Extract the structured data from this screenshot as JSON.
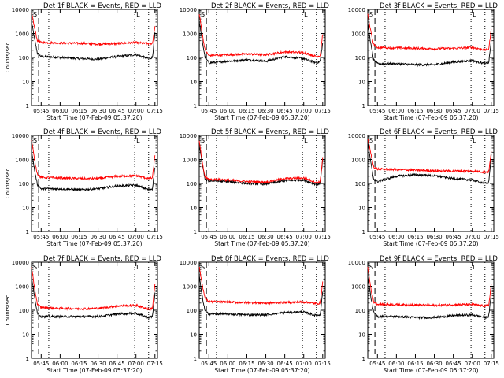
{
  "chart_data": [
    {
      "type": "line",
      "title": "Det 1f BLACK = Events, RED = LLD",
      "xlabel": "Start Time (07-Feb-09 05:37:20)",
      "ylabel": "Counts/sec",
      "yscale": "log",
      "ylim": [
        1,
        10000
      ],
      "xticks": [
        "05:45",
        "06:00",
        "06:15",
        "06:30",
        "06:45",
        "07:00",
        "07:15"
      ],
      "yticks": [
        "1",
        "10",
        "100",
        "1000",
        "10000"
      ],
      "markers": {
        "top_left": "S",
        "top_right": "L"
      },
      "series": [
        {
          "color": "#000000",
          "x": [
            "05:37",
            "05:38",
            "05:40",
            "05:42",
            "05:45",
            "06:00",
            "06:15",
            "06:30",
            "06:45",
            "07:00",
            "07:10",
            "07:13",
            "07:15"
          ],
          "values": [
            4000,
            2000,
            500,
            150,
            110,
            100,
            90,
            85,
            110,
            130,
            90,
            100,
            1000
          ]
        },
        {
          "color": "#ff0000",
          "x": [
            "05:37",
            "05:38",
            "05:40",
            "05:42",
            "05:45",
            "06:00",
            "06:15",
            "06:30",
            "06:45",
            "07:00",
            "07:10",
            "07:13",
            "07:15"
          ],
          "values": [
            8000,
            5000,
            1500,
            500,
            420,
            400,
            390,
            360,
            380,
            420,
            370,
            380,
            2000
          ]
        }
      ]
    },
    {
      "type": "line",
      "title": "Det 2f BLACK = Events, RED = LLD",
      "xlabel": "Start Time (07-Feb-09 05:37:20)",
      "ylabel": "",
      "yscale": "log",
      "ylim": [
        1,
        10000
      ],
      "xticks": [
        "05:45",
        "06:00",
        "06:15",
        "06:30",
        "06:45",
        "07:00",
        "07:15"
      ],
      "yticks": [
        "1",
        "10",
        "100",
        "1000",
        "10000"
      ],
      "markers": {
        "top_left": "S",
        "top_right": "L"
      },
      "series": [
        {
          "color": "#000000",
          "x": [
            "05:37",
            "05:38",
            "05:40",
            "05:42",
            "05:45",
            "06:00",
            "06:15",
            "06:30",
            "06:45",
            "07:00",
            "07:10",
            "07:13",
            "07:15"
          ],
          "values": [
            4000,
            2000,
            400,
            100,
            60,
            70,
            80,
            70,
            110,
            90,
            60,
            70,
            400
          ]
        },
        {
          "color": "#ff0000",
          "x": [
            "05:37",
            "05:38",
            "05:40",
            "05:42",
            "05:45",
            "06:00",
            "06:15",
            "06:30",
            "06:45",
            "07:00",
            "07:10",
            "07:13",
            "07:15"
          ],
          "values": [
            8000,
            4000,
            800,
            200,
            120,
            130,
            140,
            130,
            170,
            160,
            110,
            120,
            1000
          ]
        }
      ]
    },
    {
      "type": "line",
      "title": "Det 3f BLACK = Events, RED = LLD",
      "xlabel": "Start Time (07-Feb-09 05:37:20)",
      "ylabel": "",
      "yscale": "log",
      "ylim": [
        1,
        10000
      ],
      "xticks": [
        "05:45",
        "06:00",
        "06:15",
        "06:30",
        "06:45",
        "07:00",
        "07:15"
      ],
      "yticks": [
        "1",
        "10",
        "100",
        "1000",
        "10000"
      ],
      "markers": {
        "top_left": "S",
        "top_right": "L"
      },
      "series": [
        {
          "color": "#000000",
          "x": [
            "05:37",
            "05:38",
            "05:40",
            "05:42",
            "05:45",
            "06:00",
            "06:15",
            "06:30",
            "06:45",
            "07:00",
            "07:10",
            "07:13",
            "07:15"
          ],
          "values": [
            3000,
            1500,
            300,
            80,
            55,
            55,
            50,
            50,
            65,
            75,
            55,
            60,
            500
          ]
        },
        {
          "color": "#ff0000",
          "x": [
            "05:37",
            "05:38",
            "05:40",
            "05:42",
            "05:45",
            "06:00",
            "06:15",
            "06:30",
            "06:45",
            "07:00",
            "07:10",
            "07:13",
            "07:15"
          ],
          "values": [
            8000,
            4000,
            1000,
            350,
            260,
            250,
            240,
            230,
            240,
            260,
            210,
            220,
            1500
          ]
        }
      ]
    },
    {
      "type": "line",
      "title": "Det 4f BLACK = Events, RED = LLD",
      "xlabel": "Start Time (07-Feb-09 05:37:20)",
      "ylabel": "Counts/sec",
      "yscale": "log",
      "ylim": [
        1,
        10000
      ],
      "xticks": [
        "05:45",
        "06:00",
        "06:15",
        "06:30",
        "06:45",
        "07:00",
        "07:15"
      ],
      "yticks": [
        "1",
        "10",
        "100",
        "1000",
        "10000"
      ],
      "markers": {
        "top_left": "S",
        "top_right": "L"
      },
      "series": [
        {
          "color": "#000000",
          "x": [
            "05:37",
            "05:38",
            "05:40",
            "05:42",
            "05:45",
            "06:00",
            "06:15",
            "06:30",
            "06:45",
            "07:00",
            "07:10",
            "07:13",
            "07:15"
          ],
          "values": [
            4000,
            1500,
            300,
            90,
            60,
            60,
            55,
            60,
            80,
            85,
            55,
            60,
            500
          ]
        },
        {
          "color": "#ff0000",
          "x": [
            "05:37",
            "05:38",
            "05:40",
            "05:42",
            "05:45",
            "06:00",
            "06:15",
            "06:30",
            "06:45",
            "07:00",
            "07:10",
            "07:13",
            "07:15"
          ],
          "values": [
            8000,
            4000,
            800,
            250,
            180,
            170,
            160,
            160,
            200,
            210,
            160,
            170,
            1500
          ]
        }
      ]
    },
    {
      "type": "line",
      "title": "Det 5f BLACK = Events, RED = LLD",
      "xlabel": "Start Time (07-Feb-09 05:37:20)",
      "ylabel": "",
      "yscale": "log",
      "ylim": [
        1,
        10000
      ],
      "xticks": [
        "05:45",
        "06:00",
        "06:15",
        "06:30",
        "06:45",
        "07:00",
        "07:15"
      ],
      "yticks": [
        "1",
        "10",
        "100",
        "1000",
        "10000"
      ],
      "markers": {
        "top_left": "S",
        "top_right": "L"
      },
      "series": [
        {
          "color": "#000000",
          "x": [
            "05:37",
            "05:38",
            "05:40",
            "05:42",
            "05:45",
            "06:00",
            "06:15",
            "06:30",
            "06:45",
            "07:00",
            "07:10",
            "07:13",
            "07:15"
          ],
          "values": [
            5000,
            2500,
            500,
            150,
            130,
            120,
            100,
            95,
            130,
            140,
            90,
            100,
            1000
          ]
        },
        {
          "color": "#ff0000",
          "x": [
            "05:37",
            "05:38",
            "05:40",
            "05:42",
            "05:45",
            "06:00",
            "06:15",
            "06:30",
            "06:45",
            "07:00",
            "07:10",
            "07:13",
            "07:15"
          ],
          "values": [
            7000,
            3500,
            600,
            180,
            150,
            140,
            120,
            115,
            160,
            170,
            110,
            120,
            1200
          ]
        }
      ]
    },
    {
      "type": "line",
      "title": "Det 6f BLACK = Events, RED = LLD",
      "xlabel": "Start Time (07-Feb-09 05:37:20)",
      "ylabel": "",
      "yscale": "log",
      "ylim": [
        1,
        10000
      ],
      "xticks": [
        "05:45",
        "06:00",
        "06:15",
        "06:30",
        "06:45",
        "07:00",
        "07:15"
      ],
      "yticks": [
        "1",
        "10",
        "100",
        "1000",
        "10000"
      ],
      "markers": {
        "top_left": "S",
        "top_right": "L"
      },
      "series": [
        {
          "color": "#000000",
          "x": [
            "05:37",
            "05:38",
            "05:40",
            "05:42",
            "05:45",
            "06:00",
            "06:15",
            "06:30",
            "06:45",
            "07:00",
            "07:10",
            "07:13",
            "07:15"
          ],
          "values": [
            6000,
            3000,
            600,
            150,
            120,
            200,
            230,
            210,
            160,
            140,
            100,
            110,
            1500
          ]
        },
        {
          "color": "#ff0000",
          "x": [
            "05:37",
            "05:38",
            "05:40",
            "05:42",
            "05:45",
            "06:00",
            "06:15",
            "06:30",
            "06:45",
            "07:00",
            "07:10",
            "07:13",
            "07:15"
          ],
          "values": [
            9000,
            5000,
            1500,
            500,
            400,
            380,
            360,
            340,
            330,
            330,
            300,
            310,
            2000
          ]
        }
      ]
    },
    {
      "type": "line",
      "title": "Det 7f BLACK = Events, RED = LLD",
      "xlabel": "Start Time (07-Feb-09 05:37:20)",
      "ylabel": "Counts/sec",
      "yscale": "log",
      "ylim": [
        1,
        10000
      ],
      "xticks": [
        "05:45",
        "06:00",
        "06:15",
        "06:30",
        "06:45",
        "07:00",
        "07:15"
      ],
      "yticks": [
        "1",
        "10",
        "100",
        "1000",
        "10000"
      ],
      "markers": {
        "top_left": "S",
        "top_right": "L"
      },
      "series": [
        {
          "color": "#000000",
          "x": [
            "05:37",
            "05:38",
            "05:40",
            "05:42",
            "05:45",
            "06:00",
            "06:15",
            "06:30",
            "06:45",
            "07:00",
            "07:10",
            "07:13",
            "07:15"
          ],
          "values": [
            4000,
            1500,
            300,
            80,
            55,
            55,
            55,
            55,
            70,
            75,
            50,
            55,
            500
          ]
        },
        {
          "color": "#ff0000",
          "x": [
            "05:37",
            "05:38",
            "05:40",
            "05:42",
            "05:45",
            "06:00",
            "06:15",
            "06:30",
            "06:45",
            "07:00",
            "07:10",
            "07:13",
            "07:15"
          ],
          "values": [
            8000,
            3500,
            700,
            180,
            130,
            120,
            115,
            120,
            150,
            160,
            110,
            120,
            1200
          ]
        }
      ]
    },
    {
      "type": "line",
      "title": "Det 8f BLACK = Events, RED = LLD",
      "xlabel": "Start Time (07-Feb-09 05:37:20)",
      "ylabel": "",
      "yscale": "log",
      "ylim": [
        1,
        10000
      ],
      "xticks": [
        "05:45",
        "06:00",
        "06:15",
        "06:30",
        "06:45",
        "07:00",
        "07:15"
      ],
      "yticks": [
        "1",
        "10",
        "100",
        "1000",
        "10000"
      ],
      "markers": {
        "top_left": "S",
        "top_right": "L"
      },
      "series": [
        {
          "color": "#000000",
          "x": [
            "05:37",
            "05:38",
            "05:40",
            "05:42",
            "05:45",
            "06:00",
            "06:15",
            "06:30",
            "06:45",
            "07:00",
            "07:10",
            "07:13",
            "07:15"
          ],
          "values": [
            4000,
            1500,
            300,
            90,
            70,
            70,
            65,
            65,
            80,
            85,
            60,
            65,
            600
          ]
        },
        {
          "color": "#ff0000",
          "x": [
            "05:37",
            "05:38",
            "05:40",
            "05:42",
            "05:45",
            "06:00",
            "06:15",
            "06:30",
            "06:45",
            "07:00",
            "07:10",
            "07:13",
            "07:15"
          ],
          "values": [
            9000,
            4000,
            1000,
            300,
            230,
            220,
            210,
            200,
            210,
            220,
            190,
            200,
            1500
          ]
        }
      ]
    },
    {
      "type": "line",
      "title": "Det 9f BLACK = Events, RED = LLD",
      "xlabel": "Start Time (07-Feb-09 05:37:20)",
      "ylabel": "",
      "yscale": "log",
      "ylim": [
        1,
        10000
      ],
      "xticks": [
        "05:45",
        "06:00",
        "06:15",
        "06:30",
        "06:45",
        "07:00",
        "07:15"
      ],
      "yticks": [
        "1",
        "10",
        "100",
        "1000",
        "10000"
      ],
      "markers": {
        "top_left": "S",
        "top_right": "L"
      },
      "series": [
        {
          "color": "#000000",
          "x": [
            "05:37",
            "05:38",
            "05:40",
            "05:42",
            "05:45",
            "06:00",
            "06:15",
            "06:30",
            "06:45",
            "07:00",
            "07:10",
            "07:13",
            "07:15"
          ],
          "values": [
            3000,
            1500,
            300,
            80,
            55,
            55,
            50,
            50,
            60,
            65,
            50,
            55,
            500
          ]
        },
        {
          "color": "#ff0000",
          "x": [
            "05:37",
            "05:38",
            "05:40",
            "05:42",
            "05:45",
            "06:00",
            "06:15",
            "06:30",
            "06:45",
            "07:00",
            "07:10",
            "07:13",
            "07:15"
          ],
          "values": [
            8000,
            3500,
            700,
            220,
            180,
            170,
            165,
            160,
            170,
            175,
            150,
            160,
            1200
          ]
        }
      ]
    }
  ]
}
